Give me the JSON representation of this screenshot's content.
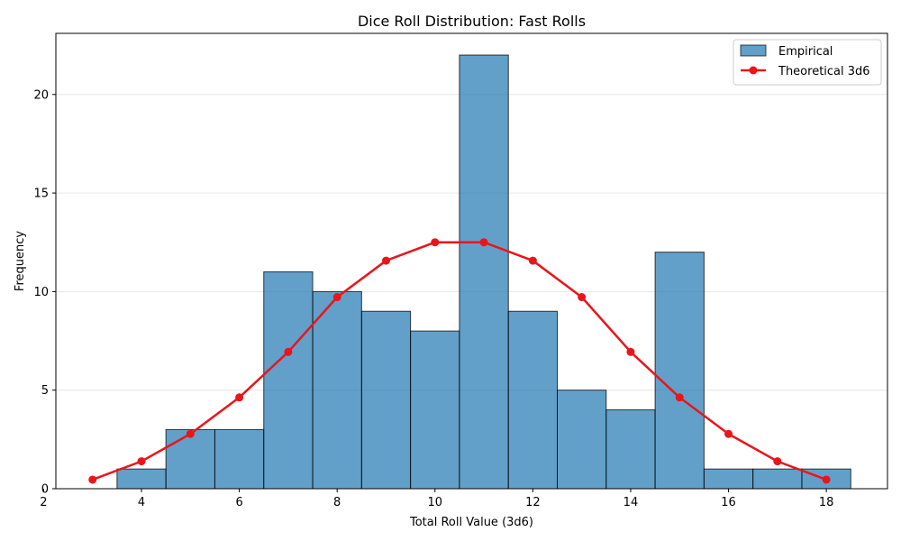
{
  "chart_data": {
    "type": "bar",
    "title": "Dice Roll Distribution: Fast Rolls",
    "xlabel": "Total Roll Value (3d6)",
    "ylabel": "Frequency",
    "xlim": [
      2.25,
      19.25
    ],
    "ylim": [
      0,
      23.1
    ],
    "xticks": [
      2,
      4,
      6,
      8,
      10,
      12,
      14,
      16,
      18
    ],
    "yticks": [
      0,
      5,
      10,
      15,
      20
    ],
    "grid": "y",
    "legend_position": "top-right",
    "colors": {
      "bar_fill": "#1f77b4",
      "bar_edge": "#000000",
      "line": "#e8161b",
      "grid": "#e6e6e6"
    },
    "series": [
      {
        "name": "Empirical",
        "type": "bar",
        "bins": [
          {
            "from": 2.5,
            "to": 3.5,
            "count": 0
          },
          {
            "from": 3.5,
            "to": 4.5,
            "count": 1
          },
          {
            "from": 4.5,
            "to": 5.5,
            "count": 3
          },
          {
            "from": 5.5,
            "to": 6.5,
            "count": 3
          },
          {
            "from": 6.5,
            "to": 7.5,
            "count": 11
          },
          {
            "from": 7.5,
            "to": 8.5,
            "count": 10
          },
          {
            "from": 8.5,
            "to": 9.5,
            "count": 9
          },
          {
            "from": 9.5,
            "to": 10.5,
            "count": 8
          },
          {
            "from": 10.5,
            "to": 11.5,
            "count": 22
          },
          {
            "from": 11.5,
            "to": 12.5,
            "count": 9
          },
          {
            "from": 12.5,
            "to": 13.5,
            "count": 5
          },
          {
            "from": 13.5,
            "to": 14.5,
            "count": 4
          },
          {
            "from": 14.5,
            "to": 15.5,
            "count": 12
          },
          {
            "from": 15.5,
            "to": 16.5,
            "count": 1
          },
          {
            "from": 16.5,
            "to": 17.5,
            "count": 1
          },
          {
            "from": 17.5,
            "to": 18.5,
            "count": 1
          }
        ]
      },
      {
        "name": "Theoretical 3d6",
        "type": "line",
        "x": [
          3,
          4,
          5,
          6,
          7,
          8,
          9,
          10,
          11,
          12,
          13,
          14,
          15,
          16,
          17,
          18
        ],
        "y": [
          0.46,
          1.39,
          2.78,
          4.63,
          6.94,
          9.72,
          11.57,
          12.5,
          12.5,
          11.57,
          9.72,
          6.94,
          4.63,
          2.78,
          1.39,
          0.46
        ]
      }
    ]
  }
}
